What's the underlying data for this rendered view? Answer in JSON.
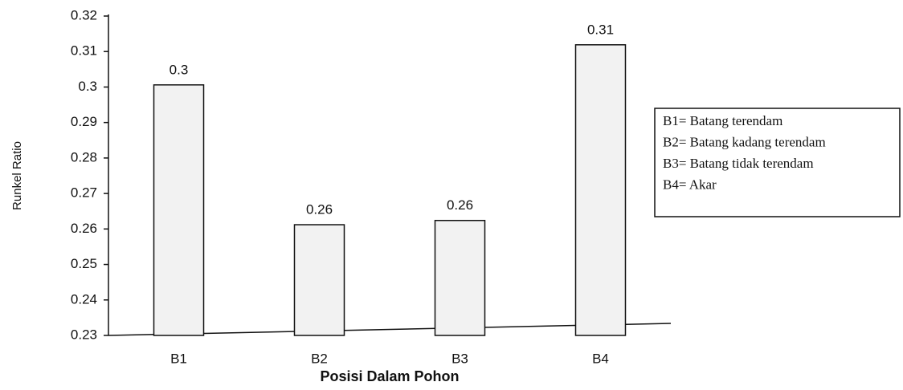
{
  "chart_data": {
    "type": "bar",
    "categories": [
      "B1",
      "B2",
      "B3",
      "B4"
    ],
    "values": [
      0.3006,
      0.2612,
      0.2624,
      0.3119
    ],
    "value_labels": [
      "0.3",
      "0.26",
      "0.26",
      "0.31"
    ],
    "color": "#f2f2f2",
    "x_label": "Posisi Dalam Pohon",
    "y_label": "Runkel Ratio",
    "ylim": [
      0.23,
      0.32
    ],
    "yticks": [
      0.23,
      0.24,
      0.25,
      0.26,
      0.27,
      0.28,
      0.29,
      0.3,
      0.31,
      0.32
    ],
    "grid": false,
    "annotation": [
      "B1= Batang terendam",
      "B2= Batang kadang terendam",
      "B3= Batang tidak terendam",
      "B4= Akar"
    ]
  }
}
